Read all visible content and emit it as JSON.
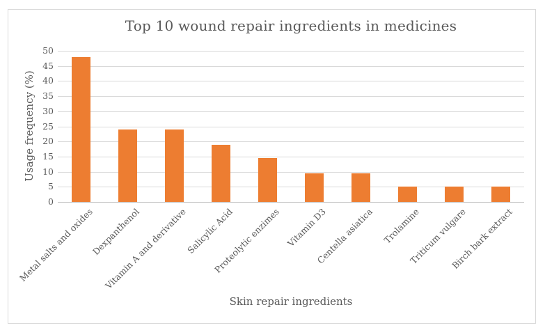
{
  "chart_data": {
    "type": "bar",
    "title": "Top 10 wound repair ingredients in medicines",
    "categories": [
      "Metal salts and oxides",
      "Dexpanthenol",
      "Vitamin A and derivative",
      "Salicylic Acid",
      "Proteolytic enzimes",
      "Vitamin D3",
      "Centella asiatica",
      "Trolamine",
      "Triticum vulgare",
      "Birch bark extract"
    ],
    "values": [
      48,
      24,
      24,
      19,
      14.5,
      9.5,
      9.5,
      5,
      5,
      5
    ],
    "xlabel": "Skin repair ingredients",
    "ylabel": "Usage frequency (%)",
    "ylim": [
      0,
      50
    ],
    "ytick_step": 5,
    "yticks": [
      0,
      5,
      10,
      15,
      20,
      25,
      30,
      35,
      40,
      45,
      50
    ],
    "grid": true,
    "legend": false
  },
  "colors": {
    "bar": "#ED7D31",
    "gridline": "#D9D9D9",
    "axis_line": "#BFBFBF",
    "text": "#595959",
    "frame_border": "#D9D9D9",
    "background": "#FFFFFF"
  }
}
